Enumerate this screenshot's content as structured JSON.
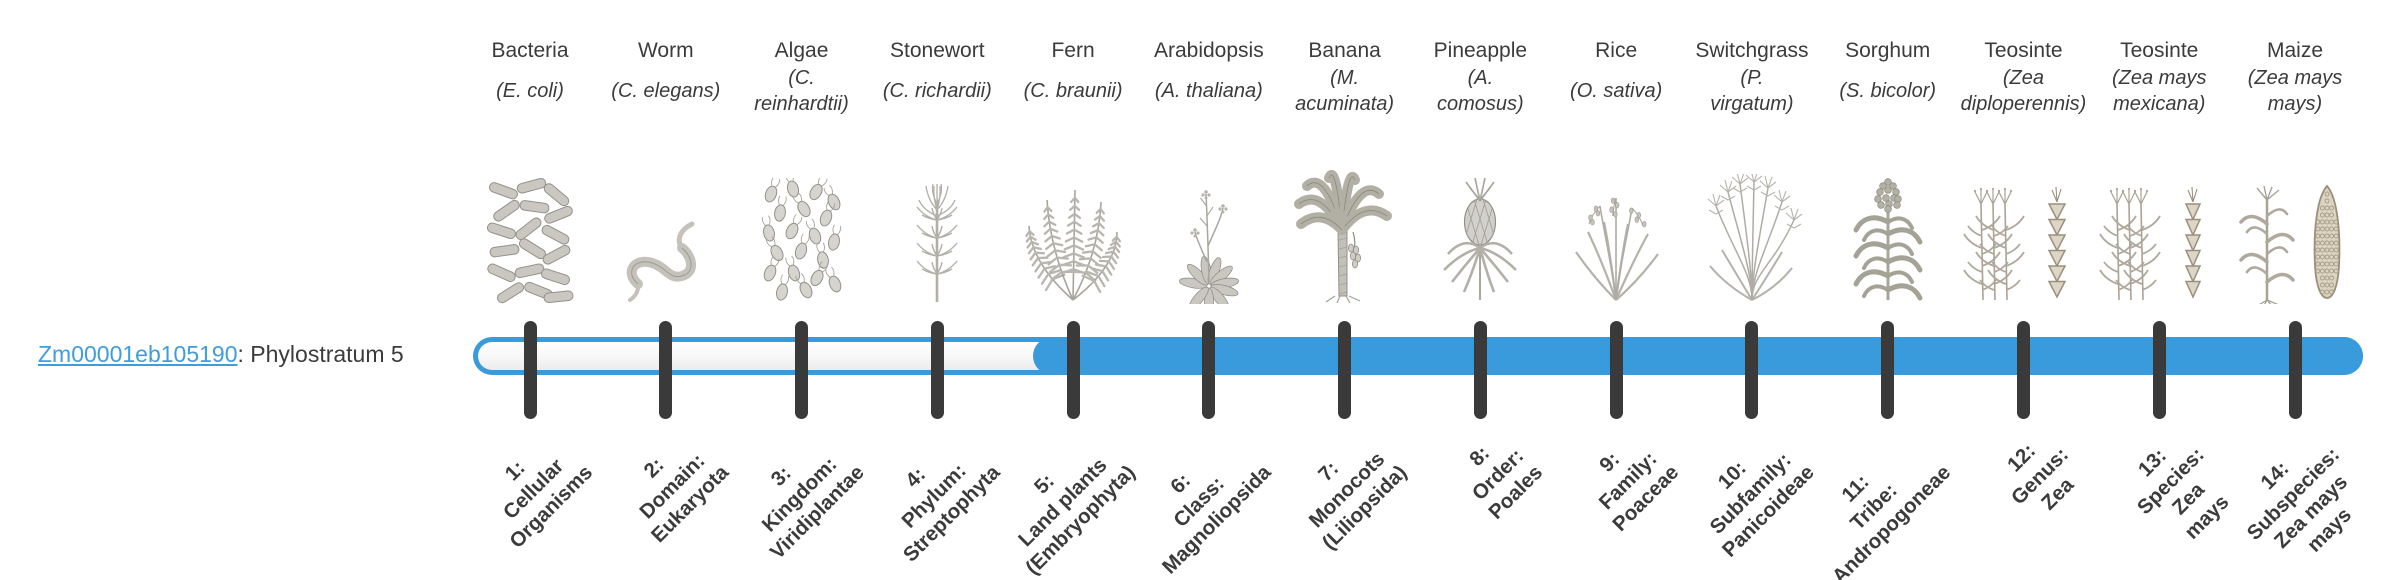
{
  "gene": {
    "id": "Zm00001eb105190",
    "label_suffix": ": Phylostratum 5",
    "phylostratum": 5
  },
  "colors": {
    "accent_blue": "#3a9bdc",
    "bar_unfilled": "#f5f5f5",
    "tick": "#3a3a3a",
    "text": "#3b3b3b",
    "link": "#3f9ddc",
    "sketch_gray": "#b9b7af",
    "sketch_sepia": "#a1957f"
  },
  "timeline": {
    "total_strata": 14,
    "filled_from_stratum": 5
  },
  "organisms": [
    {
      "common": "Bacteria",
      "sci": "(E. coli)",
      "icon": "bacteria-icon"
    },
    {
      "common": "Worm",
      "sci": "(C. elegans)",
      "icon": "worm-icon"
    },
    {
      "common": "Algae",
      "sci": "(C.\nreinhardtii)",
      "icon": "algae-icon"
    },
    {
      "common": "Stonewort",
      "sci": "(C. richardii)",
      "icon": "stonewort-icon"
    },
    {
      "common": "Fern",
      "sci": "(C. braunii)",
      "icon": "fern-icon"
    },
    {
      "common": "Arabidopsis",
      "sci": "(A. thaliana)",
      "icon": "arabidopsis-icon"
    },
    {
      "common": "Banana",
      "sci": "(M.\nacuminata)",
      "icon": "banana-icon"
    },
    {
      "common": "Pineapple",
      "sci": "(A.\ncomosus)",
      "icon": "pineapple-icon"
    },
    {
      "common": "Rice",
      "sci": "(O. sativa)",
      "icon": "rice-icon"
    },
    {
      "common": "Switchgrass",
      "sci": "(P.\nvirgatum)",
      "icon": "switchgrass-icon"
    },
    {
      "common": "Sorghum",
      "sci": "(S. bicolor)",
      "icon": "sorghum-icon"
    },
    {
      "common": "Teosinte",
      "sci": "(Zea\ndiploperennis)",
      "icon": "teosinte-diploperennis-icon"
    },
    {
      "common": "Teosinte",
      "sci": "(Zea mays\nmexicana)",
      "icon": "teosinte-mexicana-icon"
    },
    {
      "common": "Maize",
      "sci": "(Zea mays\nmays)",
      "icon": "maize-icon"
    }
  ],
  "strata": [
    "1:\nCellular\nOrganisms",
    "2:\nDomain:\nEukaryota",
    "3:\nKingdom:\nViridiplantae",
    "4:\nPhylum:\nStreptophyta",
    "5:\nLand plants\n(Embryophyta)",
    "6:\nClass:\nMagnoliopsida",
    "7:\nMonocots\n(Liliopsida)",
    "8:\nOrder:\nPoales",
    "9:\nFamily:\nPoaceae",
    "10:\nSubfamily:\nPanicoideae",
    "11:\nTribe:\nAndropogoneae",
    "12:\nGenus:\nZea",
    "13:\nSpecies:\nZea\nmays",
    "14:\nSubspecies:\nZea mays\nmays"
  ]
}
